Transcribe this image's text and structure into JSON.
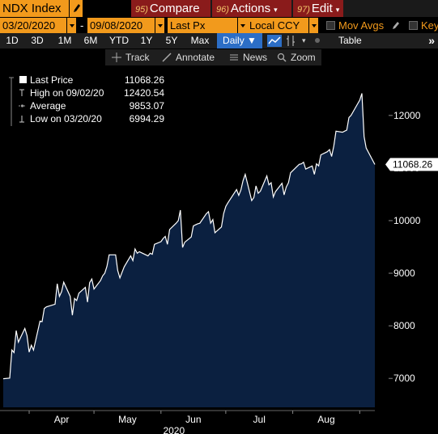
{
  "header": {
    "ticker": "NDX Index",
    "commands": [
      {
        "num": "95)",
        "label": "Compare"
      },
      {
        "num": "96)",
        "label": "Actions"
      },
      {
        "num": "97)",
        "label": "Edit"
      }
    ]
  },
  "settings": {
    "start_date": "03/20/2020",
    "dash": "-",
    "end_date": "09/08/2020",
    "price_field": "Last Px",
    "currency": "Local CCY",
    "mov_avgs_label": "Mov Avgs",
    "key_label": "Key"
  },
  "periods": {
    "items": [
      "1D",
      "3D",
      "1M",
      "6M",
      "YTD",
      "1Y",
      "5Y",
      "Max"
    ],
    "frequency": "Daily ▼",
    "table_label": "Table",
    "more": "»"
  },
  "tools": {
    "track": "Track",
    "annotate": "Annotate",
    "news": "News",
    "zoom": "Zoom"
  },
  "legend": {
    "rows": [
      {
        "label": "Last Price",
        "value": "11068.26"
      },
      {
        "label": "High on 09/02/20",
        "value": "12420.54"
      },
      {
        "label": "Average",
        "value": "9853.07"
      },
      {
        "label": "Low on 03/20/20",
        "value": "6994.29"
      }
    ]
  },
  "last_price_tag": "11068.26",
  "colors": {
    "bloomberg_orange": "#f29a1c",
    "command_red": "#8a1b1b",
    "area_fill": "#0b2040",
    "line": "#ffffff",
    "active_blue": "#2c6ec6"
  },
  "chart_data": {
    "type": "area",
    "title": "",
    "xlabel": "2020",
    "ylabel": "",
    "x_tick_labels": [
      "Apr",
      "May",
      "Jun",
      "Jul",
      "Aug"
    ],
    "y_tick_labels": [
      "7000",
      "8000",
      "9000",
      "10000",
      "11000",
      "12000"
    ],
    "ylim": [
      6450,
      12950
    ],
    "grid": false,
    "series": [
      {
        "x": [
          "2020-03-20",
          "2020-03-23",
          "2020-03-24",
          "2020-03-25",
          "2020-03-26",
          "2020-03-27",
          "2020-03-30",
          "2020-03-31",
          "2020-04-01",
          "2020-04-02",
          "2020-04-03",
          "2020-04-06",
          "2020-04-07",
          "2020-04-08",
          "2020-04-09",
          "2020-04-13",
          "2020-04-14",
          "2020-04-15",
          "2020-04-16",
          "2020-04-17",
          "2020-04-20",
          "2020-04-21",
          "2020-04-22",
          "2020-04-23",
          "2020-04-24",
          "2020-04-27",
          "2020-04-28",
          "2020-04-29",
          "2020-04-30",
          "2020-05-01",
          "2020-05-04",
          "2020-05-05",
          "2020-05-06",
          "2020-05-07",
          "2020-05-08",
          "2020-05-11",
          "2020-05-12",
          "2020-05-13",
          "2020-05-14",
          "2020-05-15",
          "2020-05-18",
          "2020-05-19",
          "2020-05-20",
          "2020-05-21",
          "2020-05-22",
          "2020-05-26",
          "2020-05-27",
          "2020-05-28",
          "2020-05-29",
          "2020-06-01",
          "2020-06-02",
          "2020-06-03",
          "2020-06-04",
          "2020-06-05",
          "2020-06-08",
          "2020-06-09",
          "2020-06-10",
          "2020-06-11",
          "2020-06-12",
          "2020-06-15",
          "2020-06-16",
          "2020-06-17",
          "2020-06-18",
          "2020-06-19",
          "2020-06-22",
          "2020-06-23",
          "2020-06-24",
          "2020-06-25",
          "2020-06-26",
          "2020-06-29",
          "2020-06-30",
          "2020-07-01",
          "2020-07-02",
          "2020-07-06",
          "2020-07-07",
          "2020-07-08",
          "2020-07-09",
          "2020-07-10",
          "2020-07-13",
          "2020-07-14",
          "2020-07-15",
          "2020-07-16",
          "2020-07-17",
          "2020-07-20",
          "2020-07-21",
          "2020-07-22",
          "2020-07-23",
          "2020-07-24",
          "2020-07-27",
          "2020-07-28",
          "2020-07-29",
          "2020-07-30",
          "2020-07-31",
          "2020-08-03",
          "2020-08-04",
          "2020-08-05",
          "2020-08-06",
          "2020-08-07",
          "2020-08-10",
          "2020-08-11",
          "2020-08-12",
          "2020-08-13",
          "2020-08-14",
          "2020-08-17",
          "2020-08-18",
          "2020-08-19",
          "2020-08-20",
          "2020-08-21",
          "2020-08-24",
          "2020-08-25",
          "2020-08-26",
          "2020-08-27",
          "2020-08-28",
          "2020-08-31",
          "2020-09-01",
          "2020-09-02",
          "2020-09-03",
          "2020-09-04",
          "2020-09-08"
        ],
        "values": [
          6994.29,
          7006,
          7540,
          7490,
          7910,
          7690,
          7950,
          7810,
          7500,
          7630,
          7540,
          8090,
          8080,
          8330,
          8360,
          8410,
          8800,
          8560,
          8650,
          8830,
          8560,
          8200,
          8520,
          8480,
          8620,
          8730,
          8450,
          8820,
          8890,
          8700,
          8860,
          8950,
          9000,
          9130,
          9350,
          9350,
          9050,
          8910,
          9020,
          9120,
          9330,
          9240,
          9460,
          9380,
          9410,
          9330,
          9380,
          9360,
          9550,
          9600,
          9660,
          9700,
          9550,
          9830,
          9950,
          10000,
          10200,
          9490,
          9590,
          9690,
          9900,
          9920,
          9940,
          9950,
          10130,
          10170,
          9950,
          10020,
          9770,
          9880,
          10130,
          10270,
          10340,
          10590,
          10480,
          10580,
          10760,
          10880,
          10380,
          10440,
          10660,
          10520,
          10560,
          10850,
          10680,
          10720,
          10450,
          10550,
          10710,
          10490,
          10640,
          10720,
          10910,
          11030,
          11070,
          11080,
          11110,
          10980,
          11040,
          10880,
          11080,
          11040,
          11250,
          11310,
          11350,
          11220,
          11420,
          11700,
          11680,
          11700,
          11720,
          11960,
          12000,
          12220,
          12290,
          12420.54,
          11600,
          11380,
          11068.26
        ]
      }
    ]
  }
}
